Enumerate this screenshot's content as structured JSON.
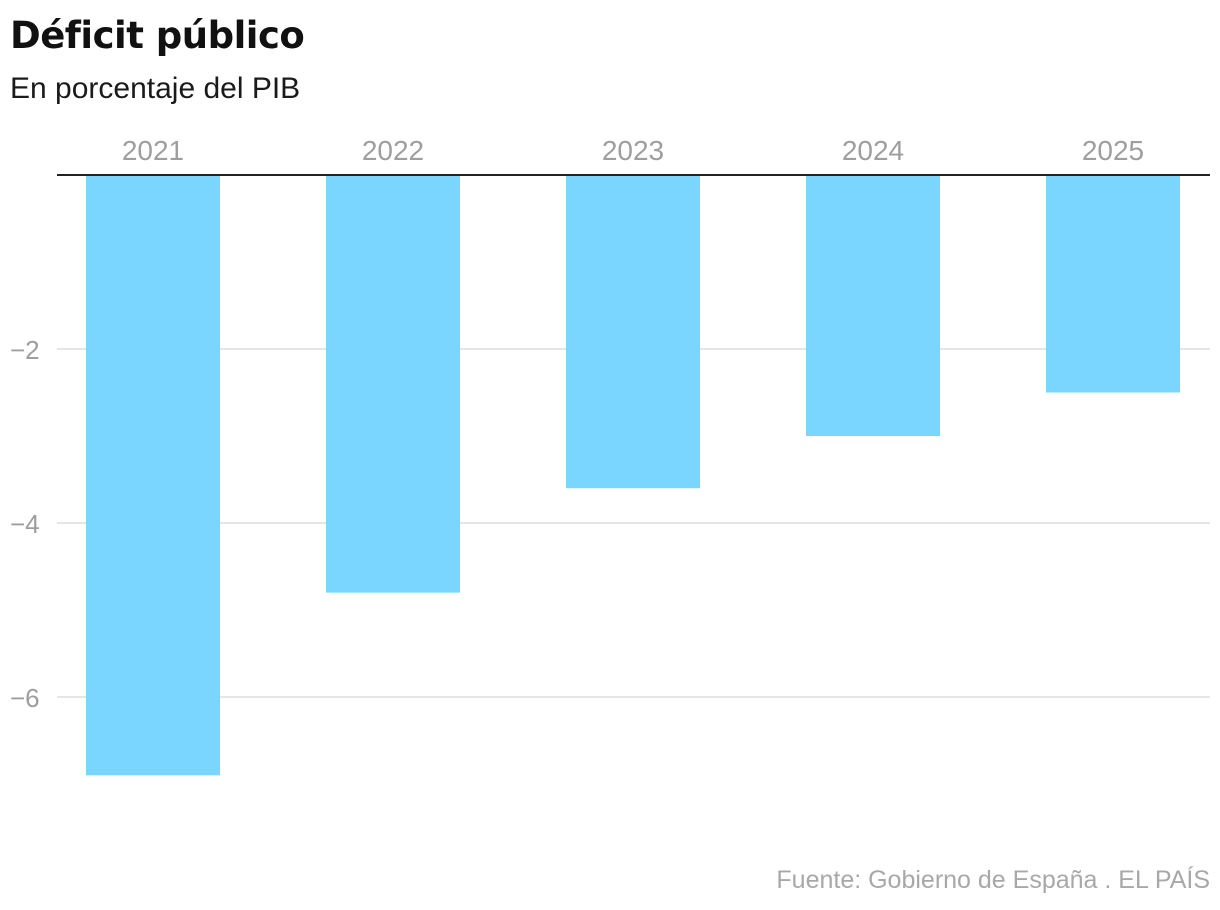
{
  "header": {
    "title": "Déficit público",
    "subtitle": "En porcentaje del PIB"
  },
  "footer": {
    "source": "Fuente: Gobierno de España . EL PAÍS"
  },
  "colors": {
    "bar": "#7ad6ff",
    "grid": "#dddddd",
    "baseline": "#222222",
    "tick_label": "#9e9e9e"
  },
  "chart_data": {
    "type": "bar",
    "title": "Déficit público",
    "subtitle": "En porcentaje del PIB",
    "categories": [
      "2021",
      "2022",
      "2023",
      "2024",
      "2025"
    ],
    "values": [
      -6.9,
      -4.8,
      -3.6,
      -3.0,
      -2.5
    ],
    "xlabel": "",
    "ylabel": "",
    "ylim": [
      -7.3,
      0
    ],
    "yticks": [
      -2,
      -4,
      -6
    ],
    "ytick_labels": [
      "−2",
      "−4",
      "−6"
    ],
    "x_axis_position": "top",
    "grid": true,
    "source": "Fuente: Gobierno de España . EL PAÍS"
  }
}
